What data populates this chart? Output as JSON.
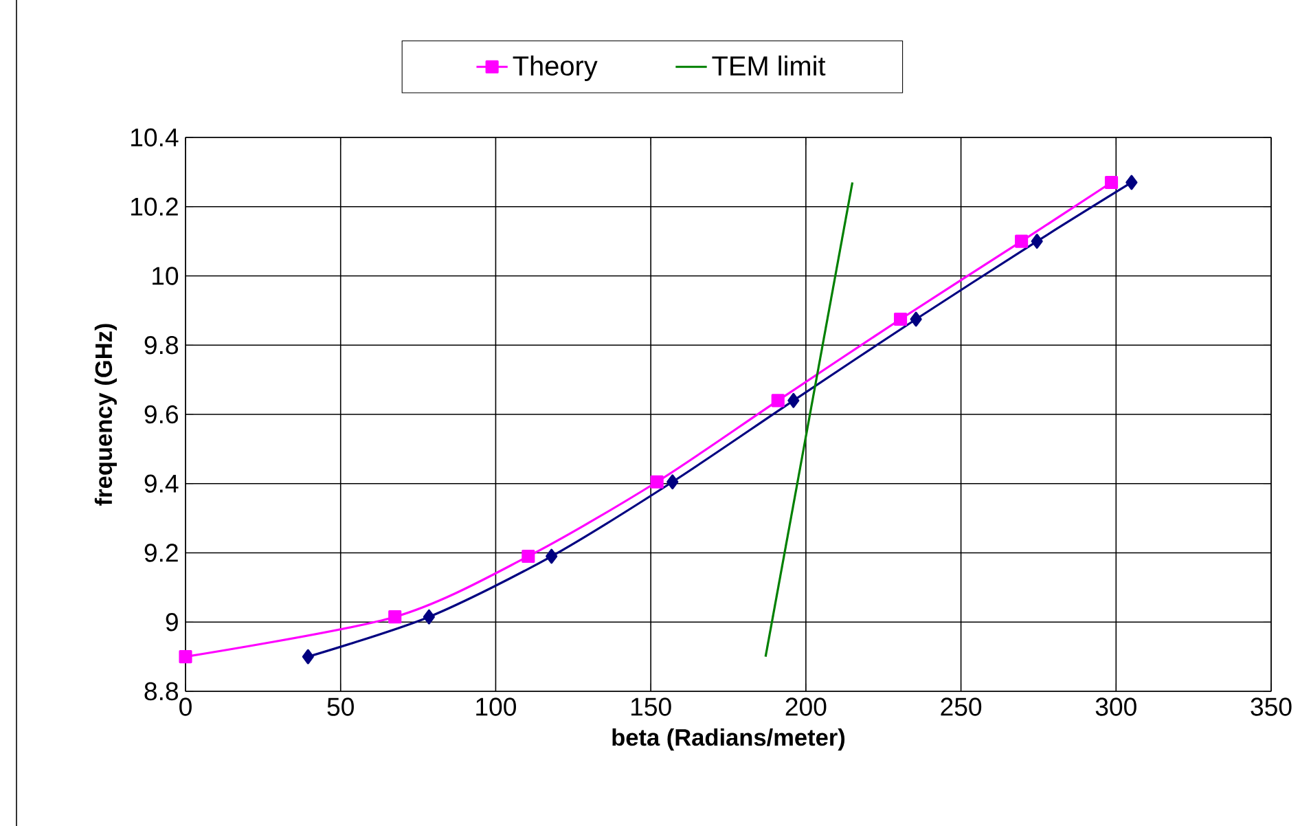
{
  "chart_data": {
    "type": "line",
    "xlabel": "beta (Radians/meter)",
    "ylabel": "frequency (GHz)",
    "xlim": [
      0,
      350
    ],
    "ylim": [
      8.8,
      10.4
    ],
    "xticks": [
      0,
      50,
      100,
      150,
      200,
      250,
      300,
      350
    ],
    "yticks": [
      8.8,
      9,
      9.2,
      9.4,
      9.6,
      9.8,
      10,
      10.2,
      10.4
    ],
    "grid": true,
    "legend": "top",
    "line_style": "solid",
    "series": [
      {
        "color": "#000080",
        "marker": "diamond",
        "x": [
          39.5,
          78.5,
          118,
          157,
          196,
          235.5,
          274.5,
          305
        ],
        "values": [
          8.9,
          9.015,
          9.19,
          9.405,
          9.64,
          9.875,
          10.1,
          10.27
        ]
      },
      {
        "name": "Theory",
        "color": "#ff00ff",
        "marker": "square",
        "x": [
          0,
          67.5,
          110.5,
          152,
          191,
          230.5,
          269.5,
          298.5
        ],
        "values": [
          8.9,
          9.015,
          9.19,
          9.405,
          9.64,
          9.875,
          10.1,
          10.27
        ]
      },
      {
        "name": "TEM limit",
        "color": "#008000",
        "marker": "none",
        "x": [
          187,
          215
        ],
        "values": [
          8.9,
          10.27
        ]
      }
    ]
  }
}
